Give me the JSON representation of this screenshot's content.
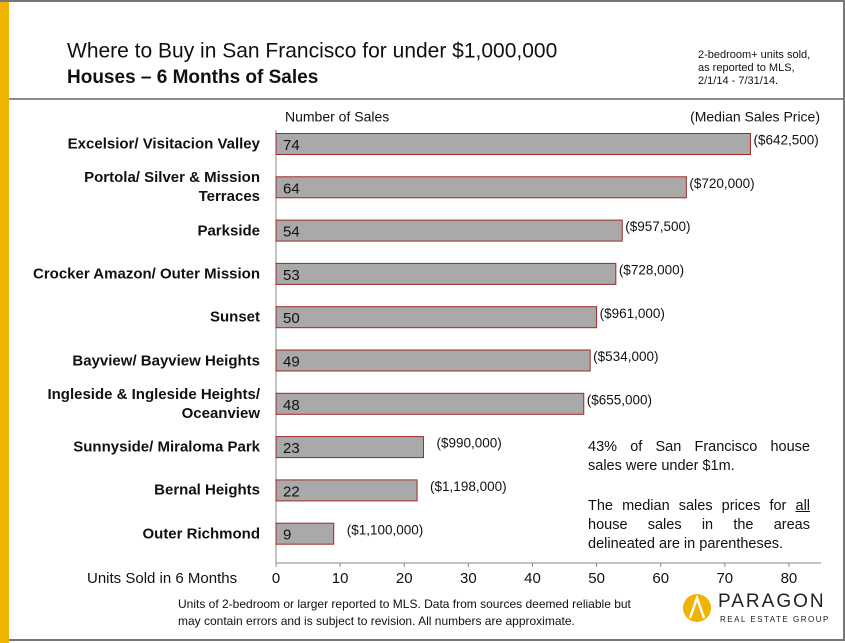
{
  "chart_data": {
    "type": "barh",
    "title": "Where to Buy in San Francisco for under $1,000,000",
    "subtitle": "Houses – 6 Months of Sales",
    "source_note": [
      "2-bedroom+ units sold,",
      "as reported to MLS,",
      "2/1/14 - 7/31/14."
    ],
    "series_label": "Number of Sales",
    "median_price_header": "(Median Sales Price)",
    "xlabel": "Units Sold in 6 Months",
    "categories": [
      "Excelsior/ Visitacion Valley",
      "Portola/ Silver & Mission Terraces",
      "Parkside",
      "Crocker Amazon/ Outer Mission",
      "Sunset",
      "Bayview/ Bayview Heights",
      "Ingleside & Ingleside Heights/ Oceanview",
      "Sunnyside/ Miraloma Park",
      "Bernal Heights",
      "Outer Richmond"
    ],
    "values": [
      74,
      64,
      54,
      53,
      50,
      49,
      48,
      23,
      22,
      9
    ],
    "median_price_labels": [
      "($642,500)",
      "($720,000)",
      "($957,500)",
      "($728,000)",
      "($961,000)",
      "($534,000)",
      "($655,000)",
      "($990,000)",
      "($1,198,000)",
      "($1,100,000)"
    ],
    "color": "#a9a9a9",
    "edge_color": "#a02828",
    "xlim": [
      0,
      85
    ],
    "xticks": [
      0,
      10,
      20,
      30,
      40,
      50,
      60,
      70,
      80
    ],
    "annotations": [
      "43% of San Francisco house sales were under $1m.",
      [
        "The median sales prices for",
        "all",
        "house sales in the areas delineated are in parentheses."
      ]
    ],
    "footnote": [
      "Units of 2-bedroom or larger reported to MLS. Data from sources deemed reliable but",
      "may contain errors and is subject to revision. All numbers are approximate."
    ]
  },
  "logo": {
    "name": "PARAGON",
    "tagline": "REAL ESTATE GROUP"
  }
}
